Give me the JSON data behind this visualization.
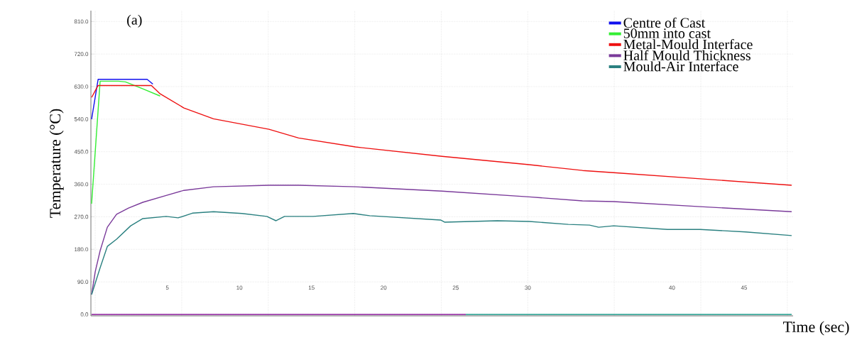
{
  "chart_data": {
    "type": "line",
    "xlabel": "Time (sec)",
    "ylabel": "Temperature (°C)",
    "annotations": [
      "(a)"
    ],
    "xlim": [
      -0.3,
      48.4
    ],
    "ylim": [
      -4,
      840
    ],
    "xticks": [
      {
        "value": 0,
        "label": null
      },
      {
        "value": 6,
        "label": null
      },
      {
        "value": 12,
        "label": null
      },
      {
        "value": 18,
        "label": null
      },
      {
        "value": 24,
        "label": null
      },
      {
        "value": 30,
        "label": null
      },
      {
        "value": 36,
        "label": null
      },
      {
        "value": 42,
        "label": null
      },
      {
        "value": 48,
        "label": null
      },
      5,
      10,
      15,
      20,
      25,
      30,
      40,
      45
    ],
    "yticks": [
      {
        "value": 0,
        "label": "0.0"
      },
      {
        "value": 90,
        "label": "90.0"
      },
      {
        "value": 180,
        "label": "180.0"
      },
      {
        "value": 270,
        "label": "270.0"
      },
      {
        "value": 360,
        "label": "360.0"
      },
      {
        "value": 450,
        "label": "450.0"
      },
      {
        "value": 540,
        "label": "540.0"
      },
      {
        "value": 630,
        "label": "630.0"
      },
      {
        "value": 720,
        "label": "720.0"
      },
      {
        "value": 810,
        "label": "810.0"
      }
    ],
    "grid": true,
    "legend": "top right",
    "marker": "none",
    "line_style": "solid",
    "series": [
      {
        "name": "Centre of Cast",
        "color": "#1010ee",
        "x": [
          -0.25,
          0.2,
          3.6,
          4.0
        ],
        "values": [
          540,
          650,
          650,
          637
        ]
      },
      {
        "name": "50mm into cast",
        "color": "#33ee33",
        "x": [
          -0.25,
          0.34,
          1.6,
          2.1,
          3.3,
          4.5
        ],
        "values": [
          306,
          645,
          645,
          643,
          624,
          604
        ]
      },
      {
        "name": "Metal-Mould Interface",
        "color": "#ee1111",
        "x": [
          -0.25,
          0.2,
          3.9,
          4.5,
          6.15,
          8.2,
          12.05,
          14.1,
          18.05,
          24.05,
          30.1,
          33.8,
          35.96,
          41.96,
          48.3
        ],
        "values": [
          600,
          633,
          633,
          610,
          571,
          541,
          512,
          488,
          463,
          437,
          414,
          398,
          392,
          375,
          357
        ]
      },
      {
        "name": "Half Mould Thickness",
        "color": "#7a3a9a",
        "x": [
          -0.25,
          0,
          0.34,
          0.84,
          1.48,
          2.31,
          3.3,
          4.92,
          6.15,
          8.21,
          12.05,
          14.12,
          18.05,
          24.05,
          30.1,
          33.79,
          35.96,
          41.96,
          48.3
        ],
        "values": [
          55,
          118,
          176,
          241,
          277,
          294,
          310,
          329,
          343,
          353,
          357,
          357,
          353,
          341,
          325,
          314,
          312,
          298,
          284
        ]
      },
      {
        "name": "Mould-Air Interface",
        "color": "#2a8080",
        "x": [
          -0.25,
          0.34,
          0.84,
          1.48,
          2.46,
          3.3,
          4.92,
          5.75,
          6.74,
          8.21,
          10.18,
          11.9,
          12.54,
          13.13,
          15.1,
          17.9,
          19.04,
          23.95,
          24.25,
          27.89,
          30.1,
          32.81,
          34.28,
          34.92,
          35.96,
          39.69,
          41.96,
          45.1,
          48.3
        ],
        "values": [
          55,
          129,
          188,
          208,
          245,
          265,
          271,
          267,
          280,
          284,
          279,
          271,
          259,
          271,
          271,
          279,
          273,
          261,
          255,
          259,
          257,
          249,
          247,
          241,
          245,
          235,
          235,
          228,
          218
        ]
      },
      {
        "color": "#8b1a9b",
        "x": [
          -0.25,
          25.7
        ],
        "values": [
          0,
          0
        ]
      },
      {
        "color": "#1a9a8a",
        "x": [
          25.7,
          48.3
        ],
        "values": [
          0,
          0
        ]
      }
    ]
  }
}
